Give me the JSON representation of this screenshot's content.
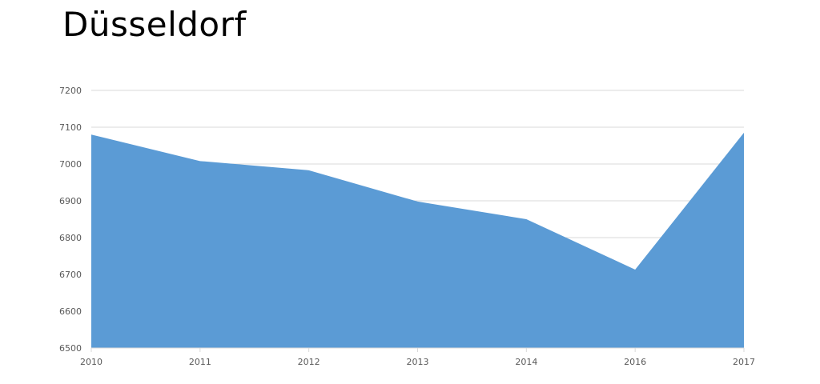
{
  "title": "Düsseldorf",
  "colors": {
    "area": "#5b9bd5",
    "grid": "#d9d9d9",
    "tick_text": "#595959"
  },
  "chart_data": {
    "type": "area",
    "title": "Düsseldorf",
    "xlabel": "",
    "ylabel": "",
    "categories": [
      "2010",
      "2011",
      "2012",
      "2013",
      "2014",
      "2016",
      "2017"
    ],
    "values": [
      7080,
      7008,
      6983,
      6898,
      6850,
      6713,
      7085
    ],
    "ylim": [
      6500,
      7200
    ],
    "yticks": [
      6500,
      6600,
      6700,
      6800,
      6900,
      7000,
      7100,
      7200
    ],
    "grid": true,
    "legend": "none"
  }
}
